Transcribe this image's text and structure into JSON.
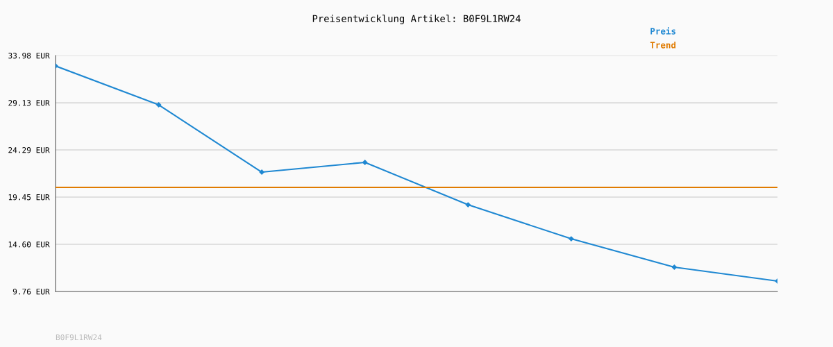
{
  "chart_data": {
    "type": "line",
    "title": "Preisentwicklung Artikel: B0F9L1RW24",
    "categories": [
      null,
      null,
      null,
      null,
      null,
      null,
      null,
      null
    ],
    "series": [
      {
        "name": "Preis",
        "color": "#1f88d2",
        "values": [
          32.91,
          28.92,
          22.01,
          23.01,
          18.66,
          15.17,
          12.25,
          10.83
        ],
        "marker": "diamond"
      },
      {
        "name": "Trend",
        "color": "#e07b00",
        "values": [
          20.44,
          20.44,
          20.44,
          20.44,
          20.44,
          20.44,
          20.44,
          20.44
        ],
        "marker": "none"
      }
    ],
    "ylim": [
      9.76,
      33.98
    ],
    "yticks": [
      {
        "value": 9.76,
        "label": "9.76 EUR"
      },
      {
        "value": 14.6,
        "label": "14.60 EUR"
      },
      {
        "value": 19.45,
        "label": "19.45 EUR"
      },
      {
        "value": 24.29,
        "label": "24.29 EUR"
      },
      {
        "value": 29.13,
        "label": "29.13 EUR"
      },
      {
        "value": 33.98,
        "label": "33.98 EUR"
      }
    ],
    "grid": "y",
    "legend": "top right",
    "line_style": "solid",
    "annotations": [
      "B0F9L1RW24"
    ]
  }
}
